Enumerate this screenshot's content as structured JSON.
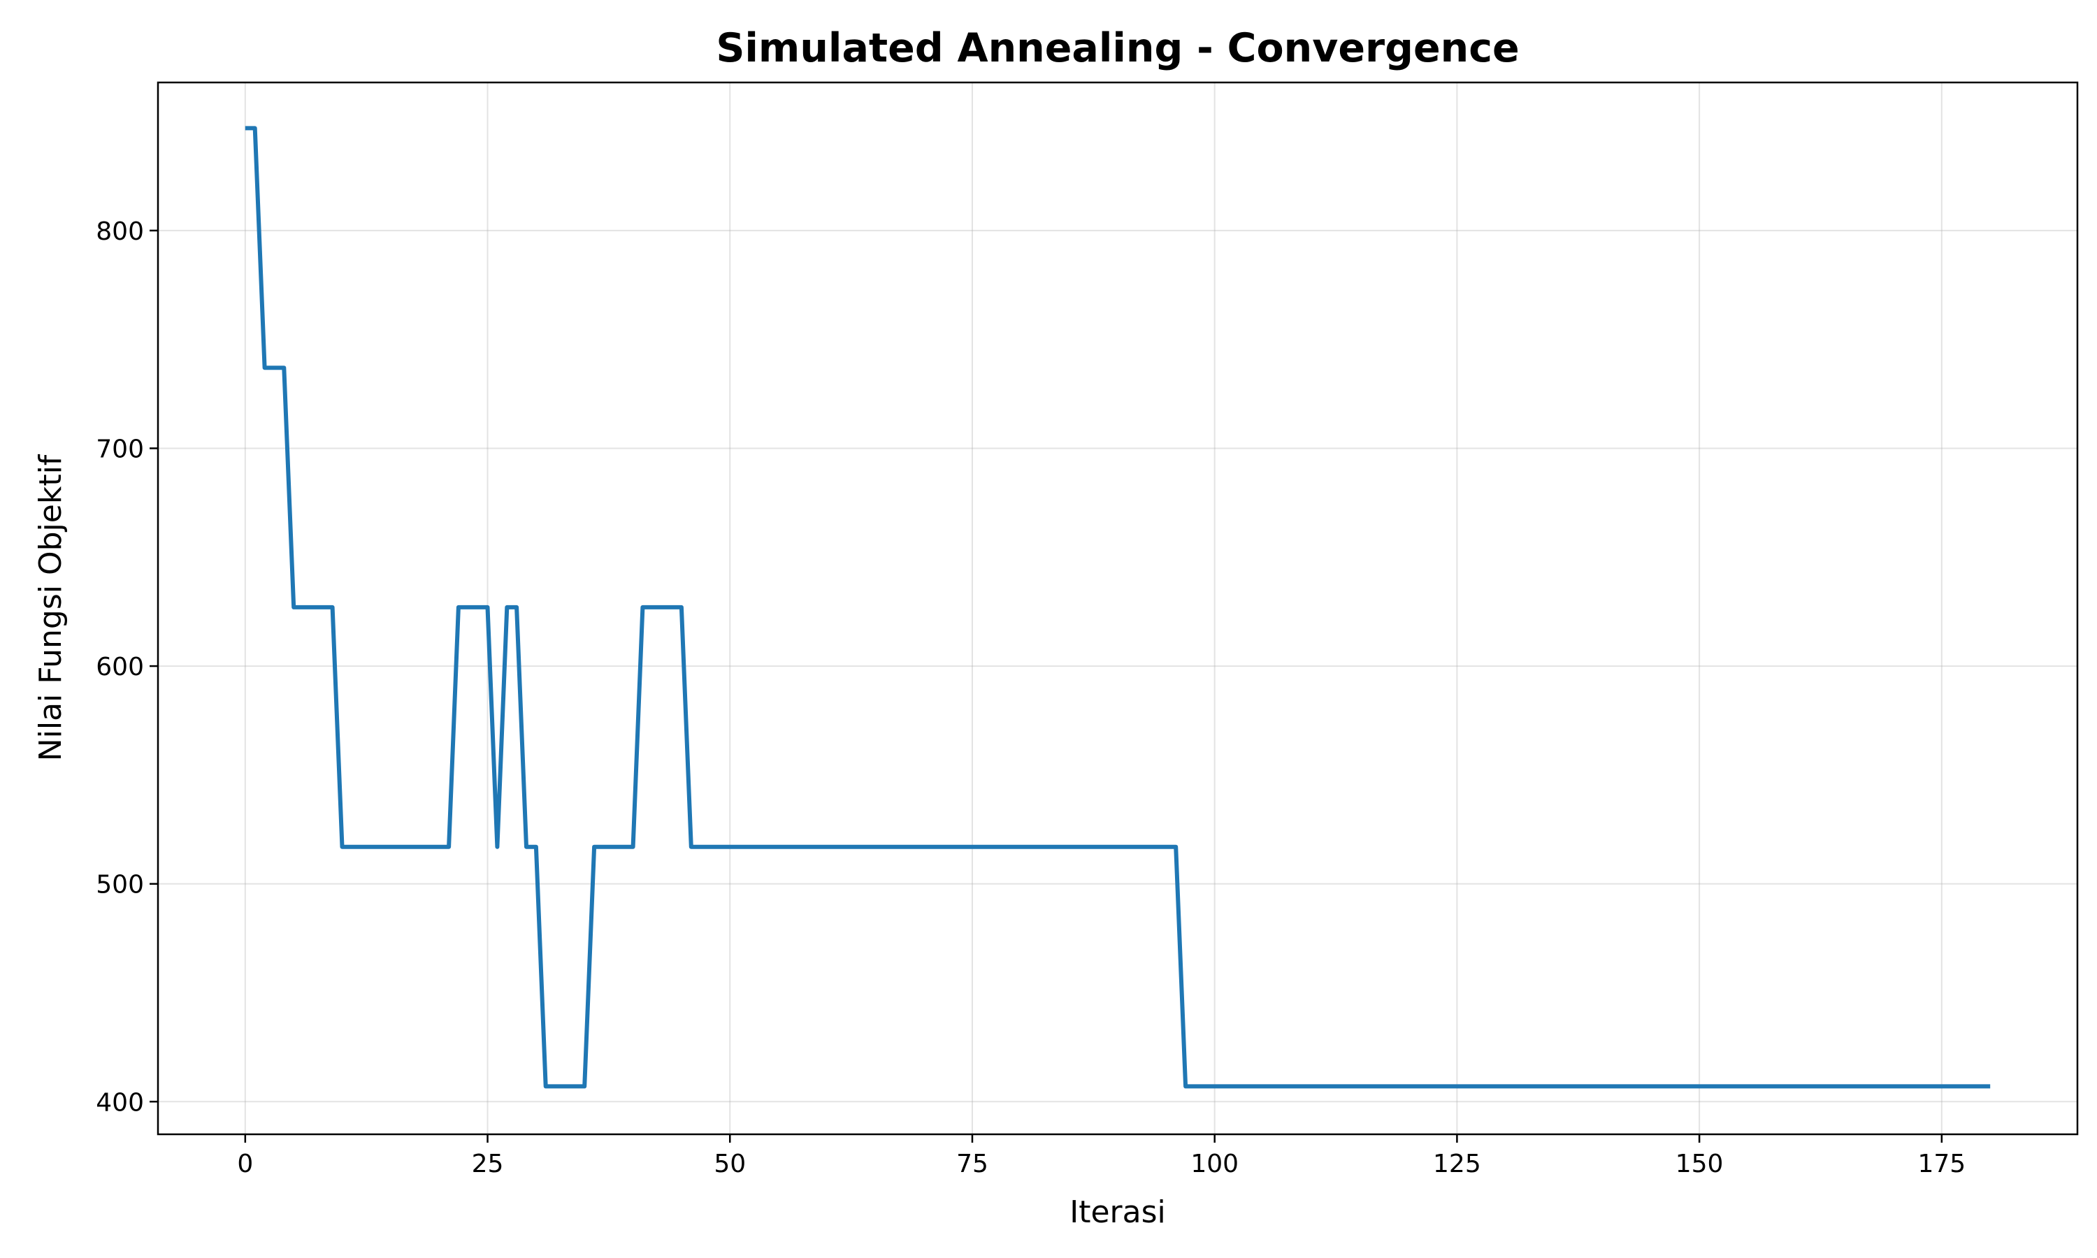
{
  "chart_data": {
    "type": "line",
    "title": "Simulated Annealing - Convergence",
    "xlabel": "Iterasi",
    "ylabel": "Nilai Fungsi Objektif",
    "xlim": [
      -9,
      189
    ],
    "ylim": [
      385,
      868
    ],
    "xticks": [
      0,
      25,
      50,
      75,
      100,
      125,
      150,
      175
    ],
    "yticks": [
      400,
      500,
      600,
      700,
      800
    ],
    "grid": true,
    "series": [
      {
        "color": "#1f77b4",
        "x": [
          0,
          1,
          2,
          3,
          4,
          5,
          6,
          7,
          8,
          9,
          10,
          11,
          12,
          13,
          14,
          15,
          16,
          17,
          18,
          19,
          20,
          21,
          22,
          23,
          24,
          25,
          26,
          27,
          28,
          29,
          30,
          31,
          32,
          33,
          34,
          35,
          36,
          37,
          38,
          39,
          40,
          41,
          42,
          43,
          44,
          45,
          46,
          96,
          97,
          180
        ],
        "y": [
          847,
          847,
          737,
          737,
          737,
          627,
          627,
          627,
          627,
          627,
          517,
          517,
          517,
          517,
          517,
          517,
          517,
          517,
          517,
          517,
          517,
          517,
          627,
          627,
          627,
          627,
          517,
          627,
          627,
          517,
          517,
          407,
          407,
          407,
          407,
          407,
          517,
          517,
          517,
          517,
          517,
          627,
          627,
          627,
          627,
          627,
          517,
          517,
          407,
          407
        ]
      }
    ]
  }
}
